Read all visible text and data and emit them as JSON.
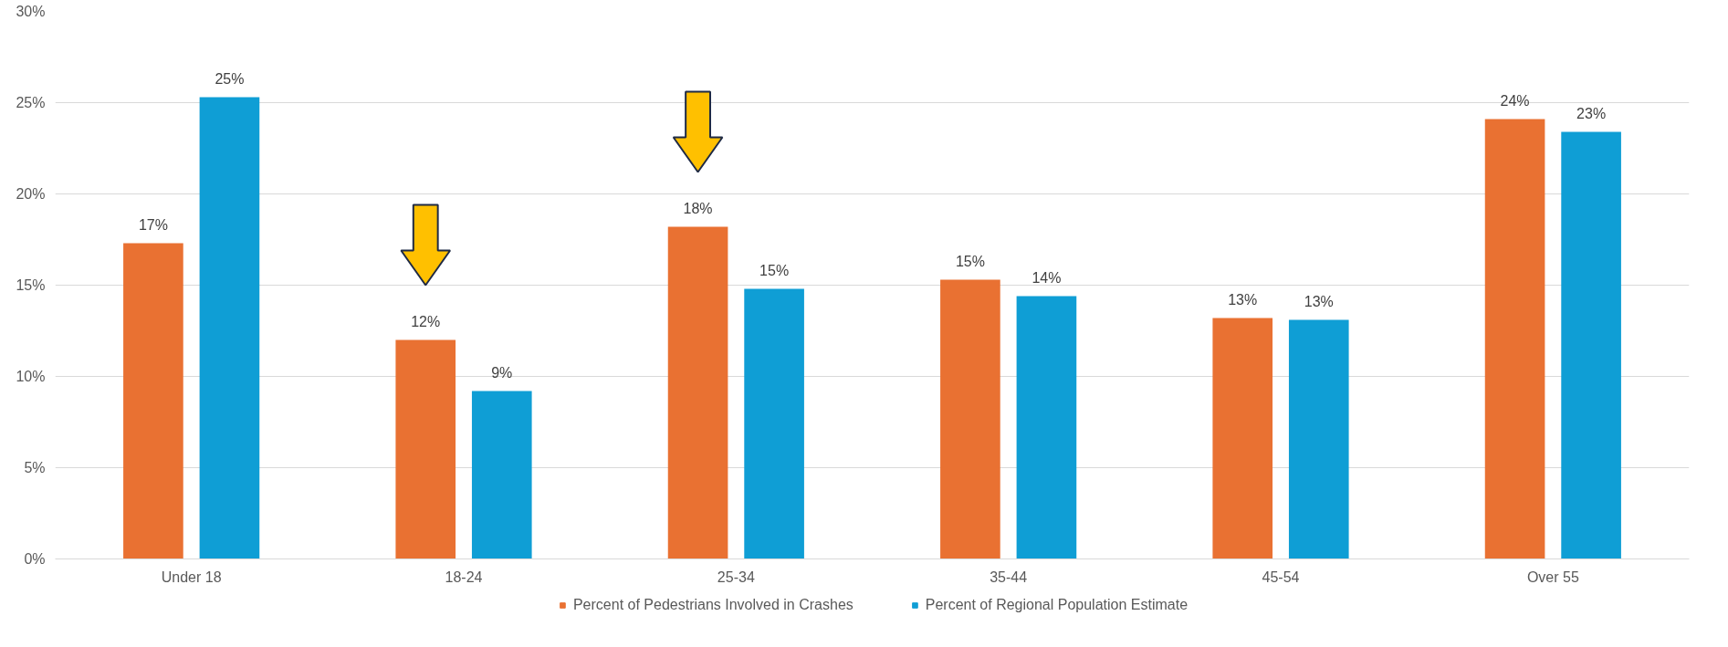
{
  "chart_data": {
    "type": "bar",
    "categories": [
      "Under 18",
      "18-24",
      "25-34",
      "35-44",
      "45-54",
      "Over 55"
    ],
    "series": [
      {
        "name": "Percent of Pedestrians Involved in Crashes",
        "color": "#e97132",
        "values": [
          17.3,
          12.0,
          18.2,
          15.3,
          13.2,
          24.1
        ],
        "value_labels": [
          "17%",
          "12%",
          "18%",
          "15%",
          "13%",
          "24%"
        ]
      },
      {
        "name": "Percent of Regional Population Estimate",
        "color": "#0f9ed5",
        "values": [
          25.3,
          9.2,
          14.8,
          14.4,
          13.1,
          23.4
        ],
        "value_labels": [
          "25%",
          "9%",
          "15%",
          "14%",
          "13%",
          "23%"
        ]
      }
    ],
    "ylim": [
      0,
      30
    ],
    "yticks": [
      {
        "value": 0,
        "label": "0%"
      },
      {
        "value": 5,
        "label": "5%"
      },
      {
        "value": 10,
        "label": "10%"
      },
      {
        "value": 15,
        "label": "15%"
      },
      {
        "value": 20,
        "label": "20%"
      },
      {
        "value": 25,
        "label": "25%"
      },
      {
        "value": 30,
        "label": "30%"
      }
    ],
    "grid": "y",
    "legend": "bottom"
  }
}
